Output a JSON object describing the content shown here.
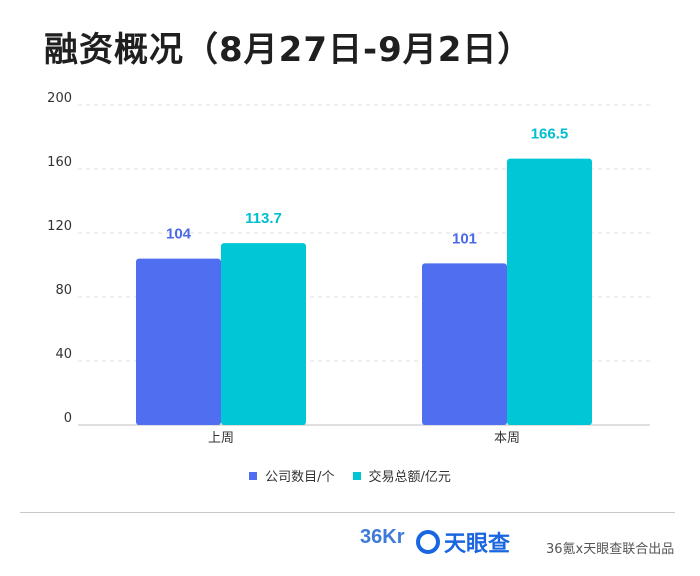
{
  "title": "融资概况（8月27日-9月2日）",
  "chart_data": {
    "type": "bar",
    "categories": [
      "上周",
      "本周"
    ],
    "series": [
      {
        "name": "公司数目/个",
        "values": [
          104,
          101
        ],
        "labels": [
          "104",
          "101"
        ],
        "color": "#4f6ff0",
        "label_color": "#4a6ae6"
      },
      {
        "name": "交易总额/亿元",
        "values": [
          113.7,
          166.5
        ],
        "labels": [
          "113.7",
          "166.5"
        ],
        "color": "#00c6d6",
        "label_color": "#00bfd0"
      }
    ],
    "yticks": [
      0,
      40,
      80,
      120,
      160,
      200
    ],
    "ytick_labels": [
      "0",
      "40",
      "80",
      "120",
      "160",
      "200"
    ],
    "ylim": [
      0,
      200
    ],
    "grid": true,
    "legend_position": "bottom"
  },
  "legend": [
    {
      "label": "公司数目/个",
      "color": "#4f6ff0"
    },
    {
      "label": "交易总额/亿元",
      "color": "#00c6d6"
    }
  ],
  "footer": {
    "logo_36kr": "36Kr",
    "logo_tyc": "天眼查",
    "credit": "36氪x天眼查联合出品"
  }
}
